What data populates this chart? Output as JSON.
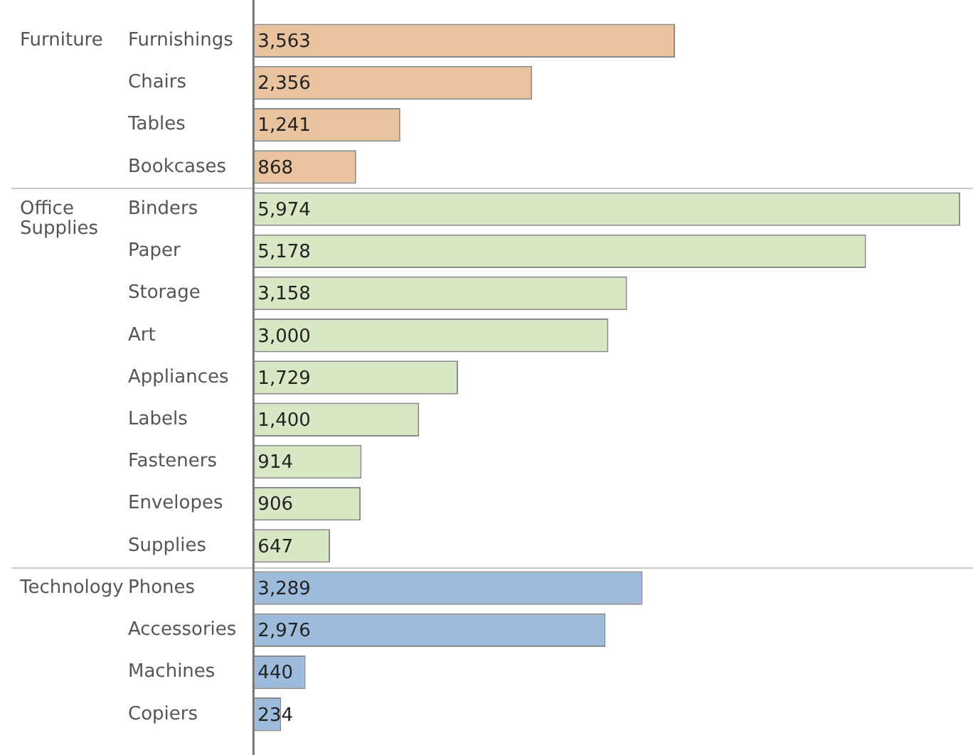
{
  "chart_data": {
    "type": "bar",
    "orientation": "horizontal",
    "categories": [
      "Furnishings",
      "Chairs",
      "Tables",
      "Bookcases",
      "Binders",
      "Paper",
      "Storage",
      "Art",
      "Appliances",
      "Labels",
      "Fasteners",
      "Envelopes",
      "Supplies",
      "Phones",
      "Accessories",
      "Machines",
      "Copiers"
    ],
    "values": [
      3563,
      2356,
      1241,
      868,
      5974,
      5178,
      3158,
      3000,
      1729,
      1400,
      914,
      906,
      647,
      3289,
      2976,
      440,
      234
    ],
    "colors": [
      "#e8c39e",
      "#e8c39e",
      "#e8c39e",
      "#e8c39e",
      "#d9e8c4",
      "#d9e8c4",
      "#d9e8c4",
      "#d9e8c4",
      "#d9e8c4",
      "#d9e8c4",
      "#d9e8c4",
      "#d9e8c4",
      "#d9e8c4",
      "#9dbcdc",
      "#9dbcdc",
      "#9dbcdc",
      "#9dbcdc"
    ],
    "annotations": [
      "Furniture",
      "Office\nSupplies",
      "Technology"
    ],
    "value_labels": [
      "3,563",
      "2,356",
      "1,241",
      "868",
      "5,974",
      "5,178",
      "3,158",
      "3,000",
      "1,729",
      "1,400",
      "914",
      "906",
      "647",
      "3,289",
      "2,976",
      "440",
      "234"
    ],
    "grid": false,
    "legend": false
  }
}
